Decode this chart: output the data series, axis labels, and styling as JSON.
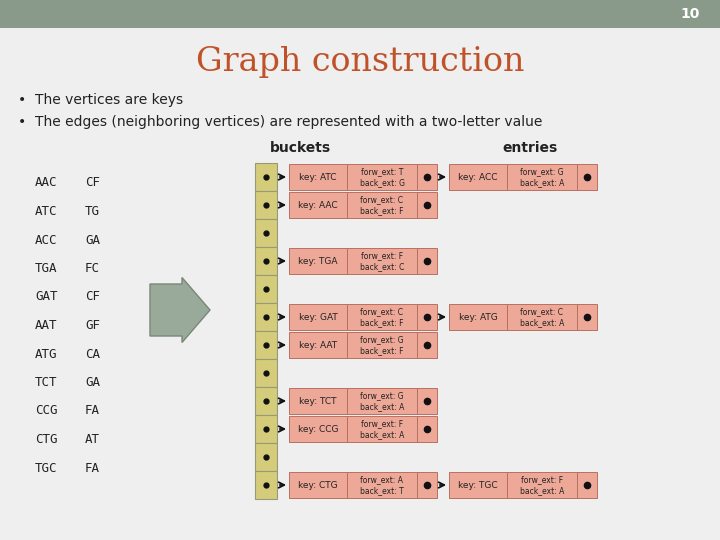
{
  "title": "Graph construction",
  "slide_number": "10",
  "bullet1": "The vertices are keys",
  "bullet2": "The edges (neighboring vertices) are represented with a two-letter value",
  "bg_color": "#efefef",
  "header_color": "#8a9a8a",
  "title_color": "#c0522a",
  "bucket_color": "#d4cc7a",
  "bucket_border": "#999977",
  "entry_bg": "#eea898",
  "entry_border": "#b87060",
  "dot_color": "#111111",
  "arrow_color": "#111111",
  "buckets_label": "buckets",
  "entries_label": "entries",
  "left_col1": [
    "AAC",
    "ATC",
    "ACC",
    "TGA",
    "GAT",
    "AAT",
    "ATG",
    "TCT",
    "CCG",
    "CTG",
    "TGC"
  ],
  "left_col2": [
    "CF",
    "TG",
    "GA",
    "FC",
    "CF",
    "GF",
    "CA",
    "GA",
    "FA",
    "AT",
    "FA"
  ],
  "num_buckets": 12,
  "entries": [
    {
      "bucket_row": 0,
      "key": "ATC",
      "forw": "T",
      "back": "G",
      "has_next": true,
      "next": {
        "key": "ACC",
        "forw": "G",
        "back": "A",
        "has_next": true
      }
    },
    {
      "bucket_row": 1,
      "key": "AAC",
      "forw": "C",
      "back": "F",
      "has_next": false
    },
    {
      "bucket_row": 2,
      "has_dot_only": true
    },
    {
      "bucket_row": 3,
      "key": "TGA",
      "forw": "F",
      "back": "C",
      "has_next": false
    },
    {
      "bucket_row": 4,
      "has_dot_only": true
    },
    {
      "bucket_row": 5,
      "key": "GAT",
      "forw": "C",
      "back": "F",
      "has_next": true,
      "next": {
        "key": "ATG",
        "forw": "C",
        "back": "A",
        "has_next": true
      }
    },
    {
      "bucket_row": 6,
      "key": "AAT",
      "forw": "G",
      "back": "F",
      "has_next": false
    },
    {
      "bucket_row": 7,
      "has_dot_only": true
    },
    {
      "bucket_row": 8,
      "key": "TCT",
      "forw": "G",
      "back": "A",
      "has_next": false
    },
    {
      "bucket_row": 9,
      "key": "CCG",
      "forw": "F",
      "back": "A",
      "has_next": false
    },
    {
      "bucket_row": 10,
      "has_dot_only": true
    },
    {
      "bucket_row": 11,
      "key": "CTG",
      "forw": "A",
      "back": "T",
      "has_next": true,
      "next": {
        "key": "TGC",
        "forw": "F",
        "back": "A",
        "has_next": true
      }
    }
  ]
}
